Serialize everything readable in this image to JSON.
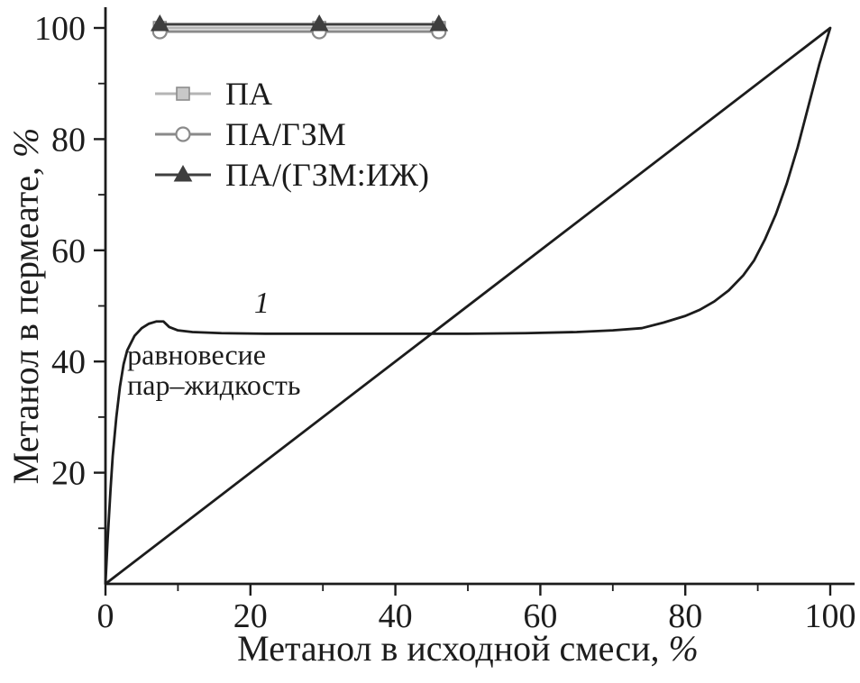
{
  "figure": {
    "background": "#ffffff",
    "ink_color": "#1c1c1c"
  },
  "chart_data": {
    "type": "line",
    "title": "",
    "xlabel": "Метанол в исходной смеси, %",
    "ylabel": "Метанол в пермеате, %",
    "xlim": [
      0,
      100
    ],
    "ylim": [
      0,
      100
    ],
    "grid": false,
    "x_major_ticks": [
      0,
      20,
      40,
      60,
      80,
      100
    ],
    "x_minor_ticks": [
      10,
      30,
      50,
      70,
      90
    ],
    "y_major_ticks": [
      20,
      40,
      60,
      80,
      100
    ],
    "y_minor_ticks": [
      10,
      30,
      50,
      70,
      90
    ],
    "legend": {
      "position": "inside-top-left",
      "entries": [
        "ПА",
        "ПА/ГЗМ",
        "ПА/(ГЗМ:ИЖ)"
      ]
    },
    "series": [
      {
        "name": "ПА",
        "marker": "square",
        "color": "#b5b5b5",
        "fill": "#c8c8c8",
        "edge": "#8d8d8d",
        "x": [
          7.5,
          29.5,
          46
        ],
        "y": [
          100,
          100,
          100
        ]
      },
      {
        "name": "ПА/ГЗМ",
        "marker": "circle-open",
        "color": "#8a8a8a",
        "x": [
          7.5,
          29.5,
          46
        ],
        "y": [
          100,
          100,
          100
        ]
      },
      {
        "name": "ПА/(ГЗМ:ИЖ)",
        "marker": "triangle",
        "color": "#3e3e3e",
        "x": [
          7.5,
          29.5,
          46
        ],
        "y": [
          100,
          100,
          100
        ]
      }
    ],
    "reference_lines": [
      {
        "name": "diagonal",
        "color": "#1c1c1c",
        "points": [
          [
            0,
            0
          ],
          [
            100,
            100
          ]
        ]
      }
    ],
    "curves": [
      {
        "name": "vle-curve",
        "label": "1",
        "color": "#1c1c1c",
        "points": [
          [
            0,
            0
          ],
          [
            0.3,
            8
          ],
          [
            0.7,
            17
          ],
          [
            1,
            23
          ],
          [
            1.5,
            30
          ],
          [
            2,
            35.5
          ],
          [
            2.5,
            39.5
          ],
          [
            3,
            42
          ],
          [
            4,
            44.6
          ],
          [
            5,
            46
          ],
          [
            6,
            46.8
          ],
          [
            7,
            47.2
          ],
          [
            8,
            47.2
          ],
          [
            8.8,
            46.2
          ],
          [
            10,
            45.6
          ],
          [
            12,
            45.3
          ],
          [
            16,
            45.1
          ],
          [
            22,
            45
          ],
          [
            30,
            45
          ],
          [
            40,
            45
          ],
          [
            50,
            45
          ],
          [
            58,
            45.1
          ],
          [
            65,
            45.3
          ],
          [
            70,
            45.6
          ],
          [
            74,
            46
          ],
          [
            77,
            47
          ],
          [
            80,
            48.2
          ],
          [
            82,
            49.3
          ],
          [
            84,
            50.8
          ],
          [
            86,
            52.8
          ],
          [
            88,
            55.5
          ],
          [
            89.5,
            58.2
          ],
          [
            91,
            62
          ],
          [
            92.5,
            66.5
          ],
          [
            94,
            72
          ],
          [
            95.5,
            78.5
          ],
          [
            96.5,
            83.5
          ],
          [
            97.5,
            88.5
          ],
          [
            98.5,
            93.5
          ],
          [
            99.3,
            97
          ],
          [
            100,
            100
          ]
        ]
      }
    ],
    "annotations": [
      {
        "name": "curve-label-1",
        "text": "1",
        "x": 20.5,
        "y": 48.8,
        "style": "italic",
        "size": 34
      },
      {
        "name": "equilibrium-line-1",
        "text": "равновесие",
        "x": 3,
        "y": 39.5,
        "style": "normal",
        "size": 32
      },
      {
        "name": "equilibrium-line-2",
        "text": "пар–жидкость",
        "x": 3,
        "y": 34,
        "style": "normal",
        "size": 32
      }
    ]
  }
}
